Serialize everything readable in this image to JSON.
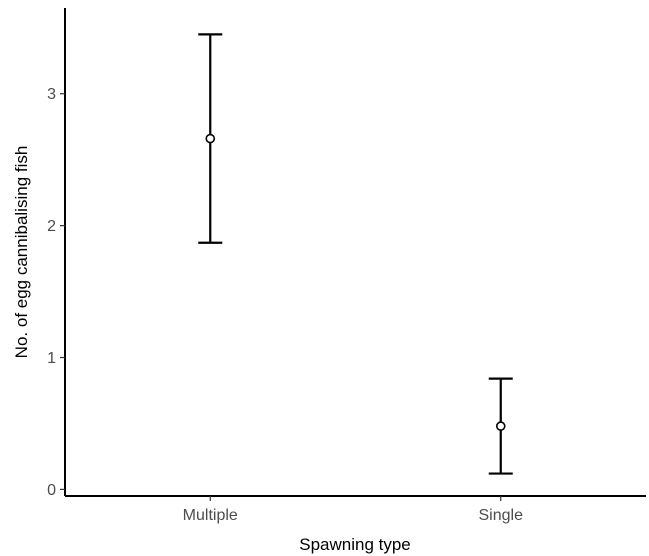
{
  "chart_data": {
    "type": "scatter",
    "title": "",
    "xlabel": "Spawning type",
    "ylabel": "No. of egg cannibalising fish",
    "categories": [
      "Multiple",
      "Single"
    ],
    "points": [
      {
        "category": "Multiple",
        "mean": 2.66,
        "lower": 1.87,
        "upper": 3.45
      },
      {
        "category": "Single",
        "mean": 0.48,
        "lower": 0.12,
        "upper": 0.84
      }
    ],
    "ylim": [
      -0.05,
      3.65
    ],
    "yticks": [
      0,
      1,
      2,
      3
    ],
    "grid": false,
    "legend": "none",
    "colors": {
      "line": "#000000",
      "point_fill": "#ffffff",
      "tick_label": "#4d4d4d"
    }
  }
}
